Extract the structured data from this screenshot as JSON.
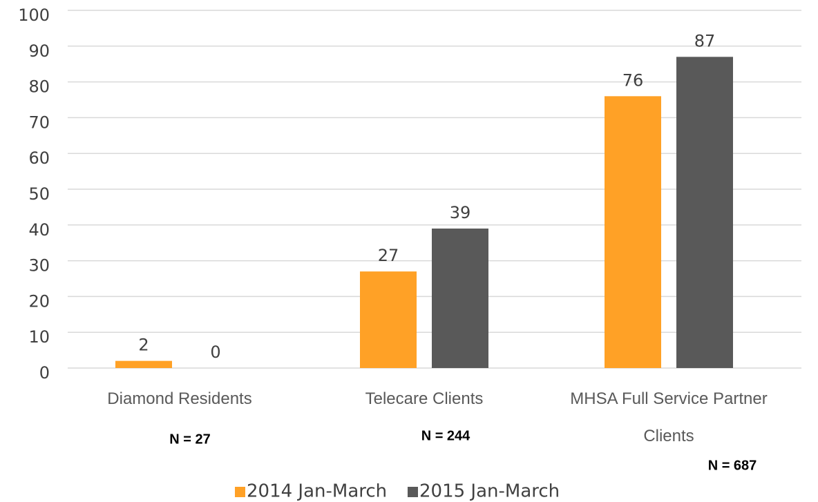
{
  "chart_data": {
    "type": "bar",
    "categories": [
      "Diamond Residents",
      "Telecare Clients",
      "MHSA Full Service Partner Clients"
    ],
    "series": [
      {
        "name": "2014 Jan-March",
        "color": "#ffa126",
        "values": [
          2,
          27,
          76
        ]
      },
      {
        "name": "2015 Jan-March",
        "color": "#595959",
        "values": [
          0,
          39,
          87
        ]
      }
    ],
    "ylim": [
      0,
      100
    ],
    "yticks": [
      0,
      10,
      20,
      30,
      40,
      50,
      60,
      70,
      80,
      90,
      100
    ],
    "grid": true,
    "legend": "bottom",
    "annotations": [
      "N = 27",
      "N = 244",
      "N = 687"
    ]
  }
}
